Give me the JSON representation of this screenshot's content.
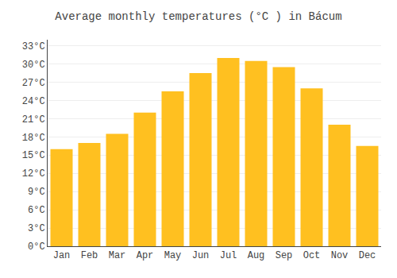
{
  "chart_data": {
    "type": "bar",
    "title": "Average monthly temperatures (°C ) in Bácum",
    "categories": [
      "Jan",
      "Feb",
      "Mar",
      "Apr",
      "May",
      "Jun",
      "Jul",
      "Aug",
      "Sep",
      "Oct",
      "Nov",
      "Dec"
    ],
    "values": [
      16.0,
      17.0,
      18.5,
      22.0,
      25.5,
      28.5,
      31.0,
      30.5,
      29.5,
      26.0,
      20.0,
      16.5
    ],
    "color": "#FFC020",
    "ylim": [
      0,
      34
    ],
    "yticks": [
      {
        "value": 0,
        "label": "0°C"
      },
      {
        "value": 3,
        "label": "3°C"
      },
      {
        "value": 6,
        "label": "6°C"
      },
      {
        "value": 9,
        "label": "9°C"
      },
      {
        "value": 12,
        "label": "12°C"
      },
      {
        "value": 15,
        "label": "15°C"
      },
      {
        "value": 18,
        "label": "18°C"
      },
      {
        "value": 21,
        "label": "21°C"
      },
      {
        "value": 24,
        "label": "24°C"
      },
      {
        "value": 27,
        "label": "27°C"
      },
      {
        "value": 30,
        "label": "30°C"
      },
      {
        "value": 33,
        "label": "33°C"
      }
    ],
    "grid": true
  }
}
